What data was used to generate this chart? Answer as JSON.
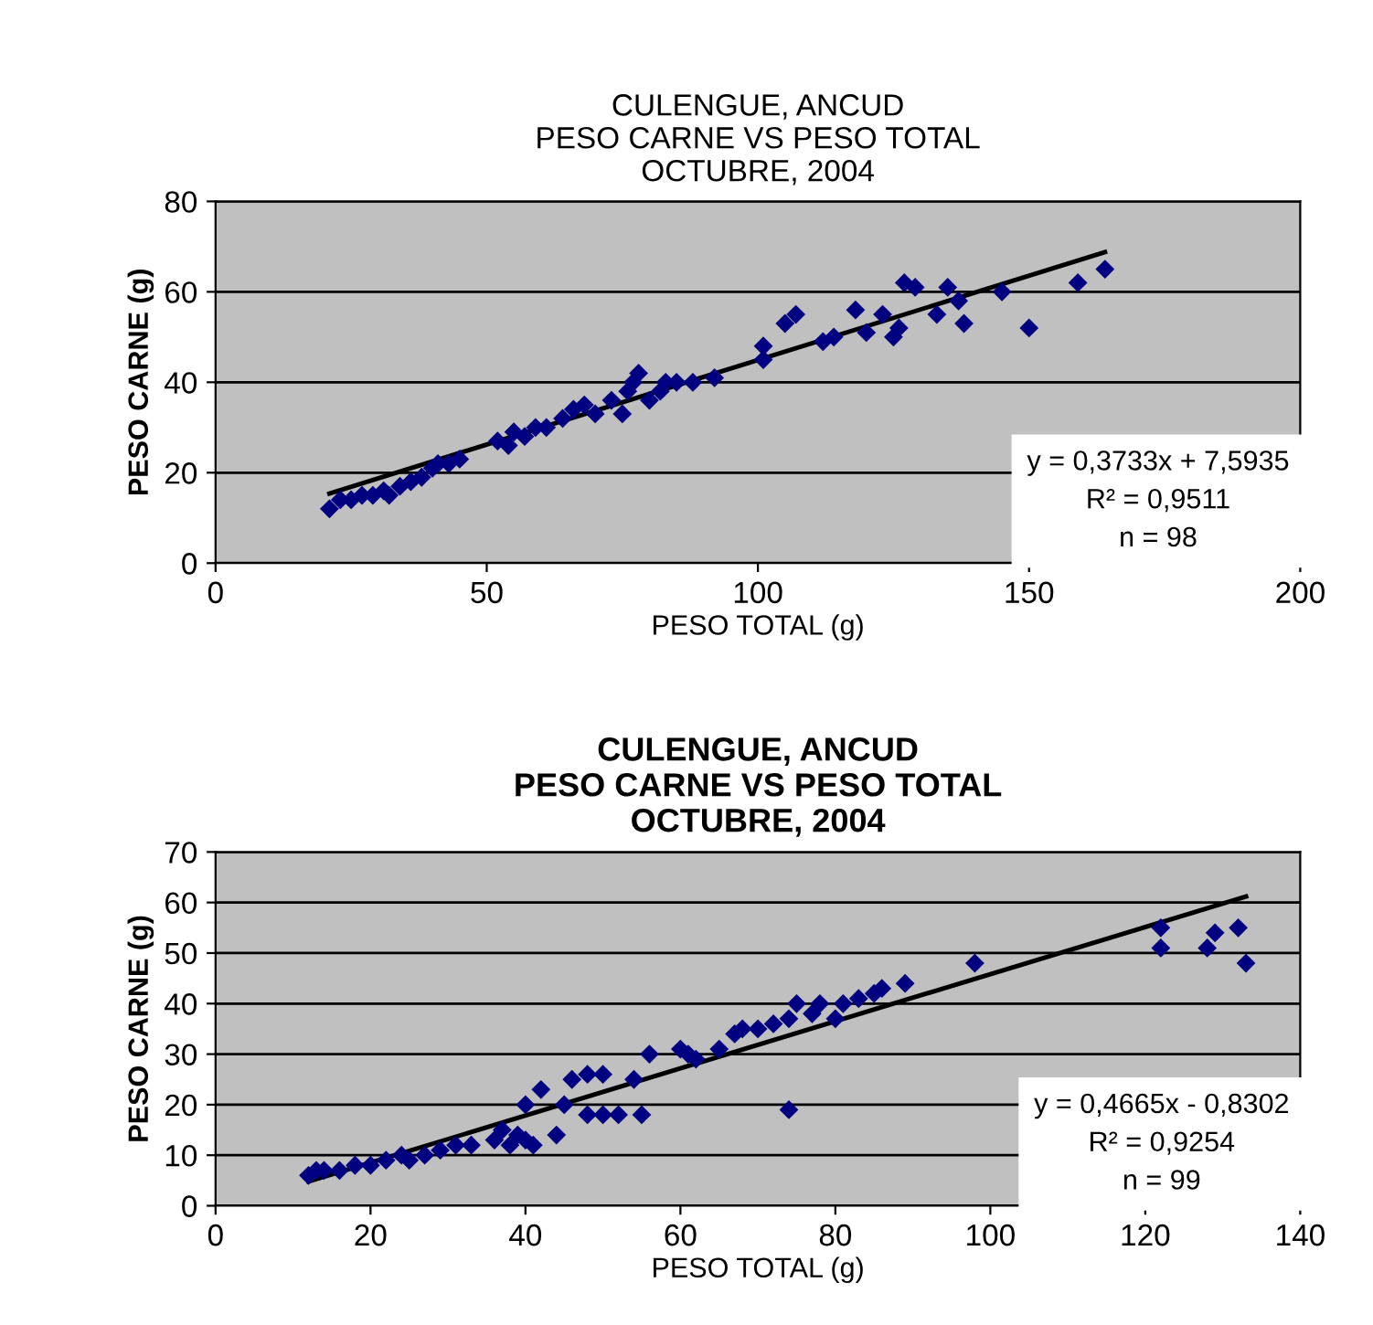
{
  "chart_data": [
    {
      "type": "scatter",
      "title": "CULENGUE, ANCUD\nPESO CARNE VS PESO TOTAL\nOCTUBRE, 2004",
      "xlabel": "PESO TOTAL (g)",
      "ylabel": "PESO CARNE (g)",
      "xlim": [
        0,
        200
      ],
      "xticks": [
        0,
        50,
        100,
        150,
        200
      ],
      "ylim": [
        0,
        80
      ],
      "yticks": [
        0,
        20,
        40,
        60,
        80
      ],
      "grid": "y",
      "marker": "diamond",
      "annotations": [
        "y = 0,3733x + 7,5935\nR² = 0,9511\nn = 98"
      ],
      "series": [
        {
          "color": "#000080",
          "x": [
            21,
            23,
            25,
            27,
            29,
            31,
            32,
            34,
            36,
            38,
            40,
            41,
            43,
            45,
            52,
            54,
            55,
            57,
            59,
            61,
            64,
            66,
            68,
            70,
            73,
            75,
            76,
            77,
            78,
            80,
            82,
            83,
            85,
            88,
            92,
            101,
            101,
            105,
            107,
            112,
            114,
            118,
            120,
            123,
            125,
            126,
            127,
            129,
            133,
            135,
            137,
            138,
            145,
            150,
            159,
            164
          ],
          "values": [
            12,
            14,
            14,
            15,
            15,
            16,
            15,
            17,
            18,
            19,
            21,
            22,
            22,
            23,
            27,
            26,
            29,
            28,
            30,
            30,
            32,
            34,
            35,
            33,
            36,
            33,
            38,
            40,
            42,
            36,
            38,
            40,
            40,
            40,
            41,
            45,
            48,
            53,
            55,
            49,
            50,
            56,
            51,
            55,
            50,
            52,
            62,
            61,
            55,
            61,
            58,
            53,
            60,
            52,
            62,
            65
          ]
        },
        {
          "type": "line",
          "color": "#000000",
          "line_style": "solid",
          "marker": "none",
          "x": [
            21,
            164
          ],
          "values": [
            15.4,
            68.8
          ]
        }
      ]
    },
    {
      "type": "scatter",
      "title": "CULENGUE, ANCUD\nPESO CARNE VS PESO TOTAL\nOCTUBRE, 2004",
      "xlabel": "PESO TOTAL (g)",
      "ylabel": "PESO CARNE (g)",
      "xlim": [
        0,
        140
      ],
      "xticks": [
        0,
        20,
        40,
        60,
        80,
        100,
        120,
        140
      ],
      "ylim": [
        0,
        70
      ],
      "yticks": [
        0,
        10,
        20,
        30,
        40,
        50,
        60,
        70
      ],
      "grid": "y",
      "marker": "diamond",
      "annotations": [
        "y = 0,4665x - 0,8302\nR² = 0,9254\nn = 99"
      ],
      "series": [
        {
          "color": "#000080",
          "x": [
            12,
            13,
            14,
            16,
            18,
            20,
            22,
            24,
            25,
            27,
            29,
            31,
            33,
            36,
            37,
            38,
            39,
            40,
            40,
            41,
            42,
            44,
            45,
            46,
            48,
            48,
            50,
            50,
            52,
            54,
            55,
            56,
            60,
            61,
            62,
            65,
            67,
            68,
            70,
            72,
            74,
            74,
            75,
            77,
            78,
            80,
            81,
            83,
            85,
            86,
            89,
            98,
            122,
            122,
            128,
            129,
            132,
            133
          ],
          "values": [
            6,
            7,
            7,
            7,
            8,
            8,
            9,
            10,
            9,
            10,
            11,
            12,
            12,
            13,
            15,
            12,
            14,
            13,
            20,
            12,
            23,
            14,
            20,
            25,
            26,
            18,
            18,
            26,
            18,
            25,
            18,
            30,
            31,
            30,
            29,
            31,
            34,
            35,
            35,
            36,
            37,
            19,
            40,
            38,
            40,
            37,
            40,
            41,
            42,
            43,
            44,
            48,
            55,
            51,
            51,
            54,
            55,
            48
          ]
        },
        {
          "type": "line",
          "color": "#000000",
          "line_style": "solid",
          "marker": "none",
          "x": [
            12,
            133
          ],
          "values": [
            4.8,
            61.2
          ]
        }
      ]
    }
  ]
}
